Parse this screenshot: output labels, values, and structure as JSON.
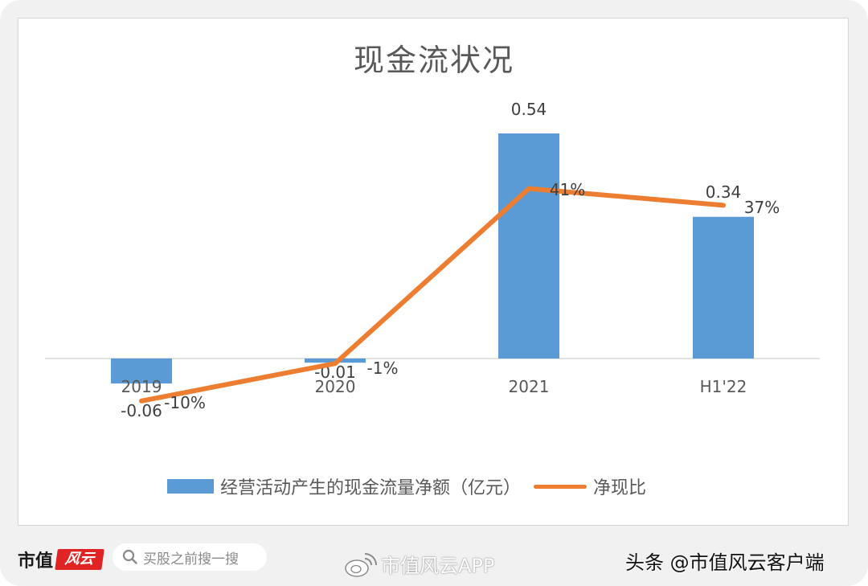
{
  "chart_data": {
    "type": "bar+line",
    "title": "现金流状况",
    "categories": [
      "2019",
      "2020",
      "2021",
      "H1'22"
    ],
    "series": [
      {
        "name": "经营活动产生的现金流量净额（亿元）",
        "type": "bar",
        "color": "#5b9bd5",
        "values": [
          -0.06,
          -0.01,
          0.54,
          0.34
        ],
        "labels": [
          "-0.06",
          "-0.01",
          "0.54",
          "0.34"
        ]
      },
      {
        "name": "净现比",
        "type": "line",
        "color": "#ed7d31",
        "values": [
          -10,
          -1,
          41,
          37
        ],
        "labels": [
          "-10%",
          "-1%",
          "41%",
          "37%"
        ],
        "unit": "%"
      }
    ],
    "xlabel": "",
    "ylabel": "",
    "grid": false,
    "y_axis_visible": false,
    "legend_position": "bottom"
  },
  "legend": {
    "bar_label": "经营活动产生的现金流量净额（亿元）",
    "line_label": "净现比"
  },
  "footer": {
    "brand_text": "市值",
    "brand_badge": "风云",
    "search_placeholder": "买股之前搜一搜",
    "weibo_text": "市值风云APP",
    "toutiao_text": "头条 @市值风云客户端"
  }
}
